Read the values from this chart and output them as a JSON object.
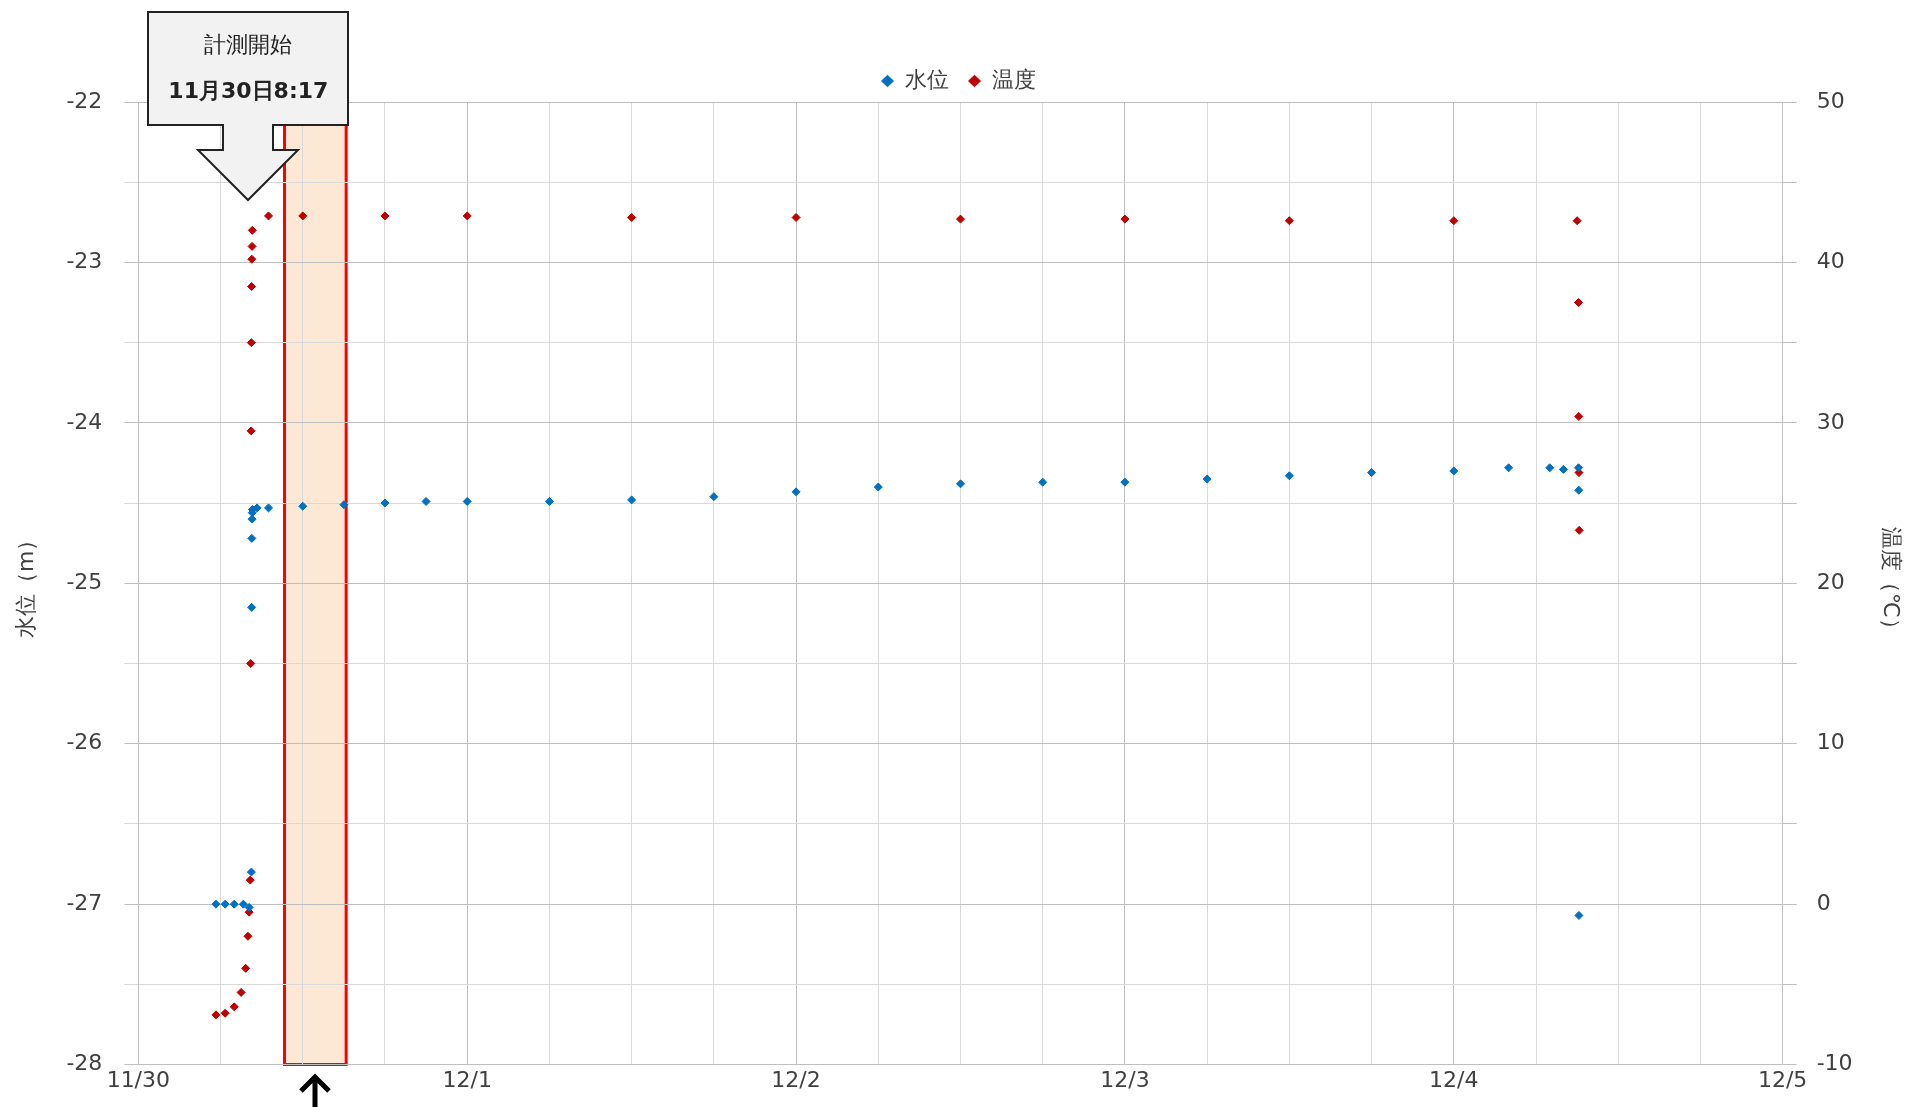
{
  "chart_data": {
    "type": "scatter",
    "ylabel": "水位（m）",
    "y2label": "温度（℃）",
    "legend": "top",
    "marker": "diamond",
    "grid": true,
    "xlim": [
      "--11-30",
      "--12-05"
    ],
    "xticks": [
      {
        "value": "--11-30",
        "label": "11/30"
      },
      {
        "value": "--11-30T06:00",
        "label": null
      },
      {
        "value": "--11-30T12:00",
        "label": null
      },
      {
        "value": "--11-30T18:00",
        "label": null
      },
      {
        "value": "--12-01",
        "label": "12/1"
      },
      {
        "value": "--12-01T06:00",
        "label": null
      },
      {
        "value": "--12-01T12:00",
        "label": null
      },
      {
        "value": "--12-01T18:00",
        "label": null
      },
      {
        "value": "--12-02",
        "label": "12/2"
      },
      {
        "value": "--12-02T06:00",
        "label": null
      },
      {
        "value": "--12-02T12:00",
        "label": null
      },
      {
        "value": "--12-02T18:00",
        "label": null
      },
      {
        "value": "--12-03",
        "label": "12/3"
      },
      {
        "value": "--12-03T06:00",
        "label": null
      },
      {
        "value": "--12-03T12:00",
        "label": null
      },
      {
        "value": "--12-03T18:00",
        "label": null
      },
      {
        "value": "--12-04",
        "label": "12/4"
      },
      {
        "value": "--12-04T06:00",
        "label": null
      },
      {
        "value": "--12-04T12:00",
        "label": null
      },
      {
        "value": "--12-04T18:00",
        "label": null
      },
      {
        "value": "--12-05",
        "label": "12/5"
      }
    ],
    "ylim": [
      -28,
      -22
    ],
    "yticks": [
      -28,
      {
        "value": -27.5,
        "label": null
      },
      -27,
      {
        "value": -26.5,
        "label": null
      },
      -26,
      {
        "value": -25.5,
        "label": null
      },
      -25,
      {
        "value": -24.5,
        "label": null
      },
      -24,
      {
        "value": -23.5,
        "label": null
      },
      -23,
      {
        "value": -22.5,
        "label": null
      },
      -22
    ],
    "y2lim": [
      -10,
      50
    ],
    "y2ticks": [
      -10,
      {
        "value": -5,
        "label": null
      },
      0,
      {
        "value": 5,
        "label": null
      },
      10,
      {
        "value": 15,
        "label": null
      },
      20,
      {
        "value": 25,
        "label": null
      },
      30,
      {
        "value": 35,
        "label": null
      },
      40,
      {
        "value": 45,
        "label": null
      },
      50
    ],
    "bands": [
      {
        "axis": "x",
        "from": "--11-30T10:40",
        "to": "--11-30T15:10",
        "color": "#fce4cc"
      }
    ],
    "annotations": [
      "計測開始",
      "11月30日8:17"
    ],
    "series": [
      {
        "name": "水位",
        "color": "#0070c0",
        "x": [
          "--11-30T05:40",
          "--11-30T06:20",
          "--11-30T07:00",
          "--11-30T07:40",
          "--11-30T08:05",
          "--11-30T08:15",
          "--11-30T08:16",
          "--11-30T08:17",
          "--11-30T08:18",
          "--11-30T08:19",
          "--11-30T08:20",
          "--11-30T08:40",
          "--11-30T09:30",
          "--11-30T12:00",
          "--11-30T15:00",
          "--11-30T18:00",
          "--11-30T21:00",
          "--12-01T00:00",
          "--12-01T06:00",
          "--12-01T12:00",
          "--12-01T18:00",
          "--12-02T00:00",
          "--12-02T06:00",
          "--12-02T12:00",
          "--12-02T18:00",
          "--12-03T00:00",
          "--12-03T06:00",
          "--12-03T12:00",
          "--12-03T18:00",
          "--12-04T00:00",
          "--12-04T04:00",
          "--12-04T07:00",
          "--12-04T08:00",
          "--12-04T09:06",
          "--12-04T09:07",
          "--12-04T09:08"
        ],
        "values": [
          -27.0,
          -27.0,
          -27.0,
          -27.0,
          -27.02,
          -26.8,
          -25.15,
          -24.72,
          -24.6,
          -24.56,
          -24.54,
          -24.53,
          -24.53,
          -24.52,
          -24.51,
          -24.5,
          -24.49,
          -24.49,
          -24.49,
          -24.48,
          -24.46,
          -24.43,
          -24.4,
          -24.38,
          -24.37,
          -24.37,
          -24.35,
          -24.33,
          -24.31,
          -24.3,
          -24.28,
          -24.28,
          -24.29,
          -24.28,
          -24.42,
          -27.07
        ]
      },
      {
        "name": "温度",
        "color": "#c00000",
        "axis": "y2",
        "x": [
          "--11-30T05:40",
          "--11-30T06:20",
          "--11-30T07:00",
          "--11-30T07:30",
          "--11-30T07:50",
          "--11-30T08:00",
          "--11-30T08:05",
          "--11-30T08:10",
          "--11-30T08:12",
          "--11-30T08:14",
          "--11-30T08:15",
          "--11-30T08:16",
          "--11-30T08:17",
          "--11-30T08:18",
          "--11-30T08:19",
          "--11-30T09:30",
          "--11-30T12:00",
          "--11-30T18:00",
          "--12-01T00:00",
          "--12-01T12:00",
          "--12-02T00:00",
          "--12-02T12:00",
          "--12-03T00:00",
          "--12-03T12:00",
          "--12-04T00:00",
          "--12-04T09:00",
          "--12-04T09:06",
          "--12-04T09:07",
          "--12-04T09:08",
          "--12-04T09:09"
        ],
        "values": [
          -6.9,
          -6.8,
          -6.4,
          -5.5,
          -4.0,
          -2.0,
          -0.5,
          1.5,
          15,
          29.5,
          35,
          38.5,
          40.2,
          41,
          42,
          42.9,
          42.9,
          42.9,
          42.9,
          42.8,
          42.8,
          42.7,
          42.7,
          42.6,
          42.6,
          42.6,
          37.5,
          30.4,
          26.9,
          23.3
        ]
      }
    ]
  }
}
